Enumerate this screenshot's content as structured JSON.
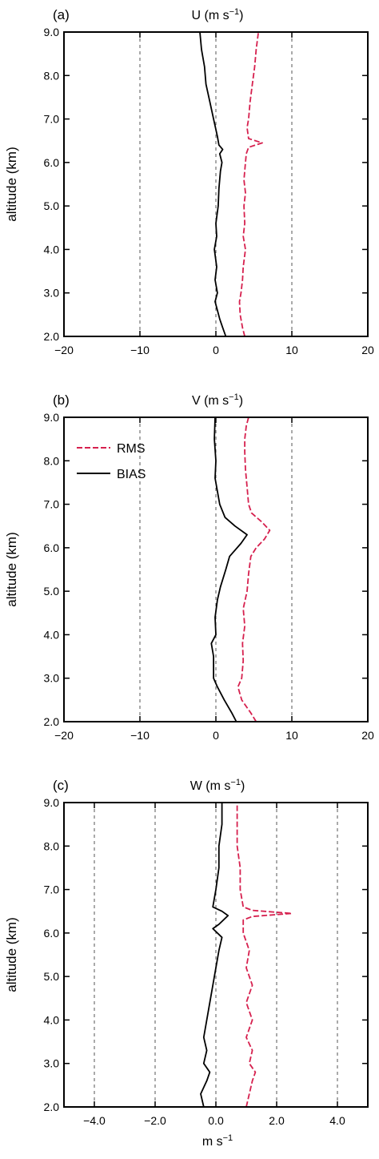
{
  "chart_data": [
    {
      "type": "line",
      "panel_label": "(a)",
      "title": "U (m s",
      "title_sup": "−1",
      "title_close": ")",
      "ylabel": "altitude (km)",
      "xlabel": "",
      "xlabel_sup": "",
      "xlim": [
        -20,
        20
      ],
      "ylim": [
        2.0,
        9.0
      ],
      "x_ticks": [
        -20,
        -10,
        0,
        10,
        20
      ],
      "x_tick_labels": [
        "−20",
        "−10",
        "0",
        "10",
        "20"
      ],
      "y_ticks": [
        2.0,
        3.0,
        4.0,
        5.0,
        6.0,
        7.0,
        8.0,
        9.0
      ],
      "y_tick_labels": [
        "2.0",
        "3.0",
        "4.0",
        "5.0",
        "6.0",
        "7.0",
        "8.0",
        "9.0"
      ],
      "grid_x": [
        -10,
        0,
        10
      ],
      "legend": null,
      "series": [
        {
          "name": "RMS",
          "color": "#d6204e",
          "dash": true,
          "points": [
            [
              3.8,
              2.0
            ],
            [
              3.5,
              2.2
            ],
            [
              3.2,
              2.5
            ],
            [
              3.1,
              2.8
            ],
            [
              3.3,
              3.0
            ],
            [
              3.5,
              3.3
            ],
            [
              3.6,
              3.6
            ],
            [
              3.9,
              4.0
            ],
            [
              3.6,
              4.3
            ],
            [
              3.8,
              4.6
            ],
            [
              3.7,
              5.0
            ],
            [
              3.9,
              5.3
            ],
            [
              3.7,
              5.6
            ],
            [
              3.9,
              6.0
            ],
            [
              4.0,
              6.2
            ],
            [
              4.3,
              6.35
            ],
            [
              6.1,
              6.45
            ],
            [
              4.3,
              6.55
            ],
            [
              4.1,
              6.8
            ],
            [
              4.3,
              7.0
            ],
            [
              4.5,
              7.4
            ],
            [
              4.8,
              7.8
            ],
            [
              5.1,
              8.2
            ],
            [
              5.3,
              8.6
            ],
            [
              5.6,
              9.0
            ]
          ]
        },
        {
          "name": "BIAS",
          "color": "#000000",
          "dash": false,
          "points": [
            [
              1.3,
              2.0
            ],
            [
              0.9,
              2.2
            ],
            [
              0.5,
              2.4
            ],
            [
              0.2,
              2.6
            ],
            [
              -0.1,
              2.8
            ],
            [
              0.2,
              3.0
            ],
            [
              -0.1,
              3.3
            ],
            [
              0.1,
              3.6
            ],
            [
              -0.2,
              4.0
            ],
            [
              0.1,
              4.3
            ],
            [
              0.0,
              4.6
            ],
            [
              0.3,
              5.0
            ],
            [
              0.4,
              5.4
            ],
            [
              0.6,
              5.8
            ],
            [
              0.8,
              6.0
            ],
            [
              0.5,
              6.2
            ],
            [
              0.9,
              6.3
            ],
            [
              0.4,
              6.4
            ],
            [
              0.2,
              6.6
            ],
            [
              -0.3,
              7.0
            ],
            [
              -0.8,
              7.4
            ],
            [
              -1.3,
              7.8
            ],
            [
              -1.5,
              8.2
            ],
            [
              -1.9,
              8.6
            ],
            [
              -2.1,
              9.0
            ]
          ]
        }
      ]
    },
    {
      "type": "line",
      "panel_label": "(b)",
      "title": "V (m s",
      "title_sup": "−1",
      "title_close": ")",
      "ylabel": "altitude (km)",
      "xlabel": "",
      "xlabel_sup": "",
      "xlim": [
        -20,
        20
      ],
      "ylim": [
        2.0,
        9.0
      ],
      "x_ticks": [
        -20,
        -10,
        0,
        10,
        20
      ],
      "x_tick_labels": [
        "−20",
        "−10",
        "0",
        "10",
        "20"
      ],
      "y_ticks": [
        2.0,
        3.0,
        4.0,
        5.0,
        6.0,
        7.0,
        8.0,
        9.0
      ],
      "y_tick_labels": [
        "2.0",
        "3.0",
        "4.0",
        "5.0",
        "6.0",
        "7.0",
        "8.0",
        "9.0"
      ],
      "grid_x": [
        -10,
        0,
        10
      ],
      "legend": {
        "placement": "top-left",
        "entries": [
          "RMS",
          "BIAS"
        ]
      },
      "series": [
        {
          "name": "RMS",
          "color": "#d6204e",
          "dash": true,
          "points": [
            [
              5.3,
              2.0
            ],
            [
              4.6,
              2.2
            ],
            [
              3.4,
              2.5
            ],
            [
              2.9,
              2.8
            ],
            [
              3.4,
              3.0
            ],
            [
              3.6,
              3.4
            ],
            [
              3.5,
              3.8
            ],
            [
              3.8,
              4.2
            ],
            [
              3.6,
              4.6
            ],
            [
              4.1,
              5.0
            ],
            [
              4.3,
              5.4
            ],
            [
              4.6,
              5.8
            ],
            [
              5.3,
              6.0
            ],
            [
              6.4,
              6.2
            ],
            [
              7.1,
              6.4
            ],
            [
              6.0,
              6.6
            ],
            [
              4.7,
              6.8
            ],
            [
              4.3,
              7.0
            ],
            [
              4.1,
              7.4
            ],
            [
              3.9,
              7.8
            ],
            [
              3.8,
              8.2
            ],
            [
              3.8,
              8.5
            ],
            [
              4.0,
              8.8
            ],
            [
              4.3,
              9.0
            ]
          ]
        },
        {
          "name": "BIAS",
          "color": "#000000",
          "dash": false,
          "points": [
            [
              2.7,
              2.0
            ],
            [
              2.1,
              2.2
            ],
            [
              1.1,
              2.5
            ],
            [
              0.2,
              2.8
            ],
            [
              -0.3,
              3.0
            ],
            [
              -0.3,
              3.5
            ],
            [
              -0.6,
              3.8
            ],
            [
              0.0,
              4.0
            ],
            [
              -0.1,
              4.4
            ],
            [
              0.2,
              4.8
            ],
            [
              0.6,
              5.1
            ],
            [
              1.3,
              5.5
            ],
            [
              1.8,
              5.8
            ],
            [
              3.3,
              6.1
            ],
            [
              4.1,
              6.3
            ],
            [
              2.5,
              6.5
            ],
            [
              1.2,
              6.7
            ],
            [
              0.5,
              7.0
            ],
            [
              0.2,
              7.3
            ],
            [
              -0.1,
              7.6
            ],
            [
              0.0,
              8.0
            ],
            [
              -0.2,
              8.5
            ],
            [
              -0.1,
              9.0
            ]
          ]
        }
      ]
    },
    {
      "type": "line",
      "panel_label": "(c)",
      "title": "W (m s",
      "title_sup": "−1",
      "title_close": ")",
      "ylabel": "altitude (km)",
      "xlabel": "m s",
      "xlabel_sup": "−1",
      "xlim": [
        -5,
        5
      ],
      "ylim": [
        2.0,
        9.0
      ],
      "x_ticks": [
        -4,
        -2,
        0,
        2,
        4
      ],
      "x_tick_labels": [
        "−4.0",
        "−2.0",
        "0.0",
        "2.0",
        "4.0"
      ],
      "y_ticks": [
        2.0,
        3.0,
        4.0,
        5.0,
        6.0,
        7.0,
        8.0,
        9.0
      ],
      "y_tick_labels": [
        "2.0",
        "3.0",
        "4.0",
        "5.0",
        "6.0",
        "7.0",
        "8.0",
        "9.0"
      ],
      "grid_x": [
        -4,
        -2,
        0,
        2,
        4
      ],
      "legend": null,
      "series": [
        {
          "name": "RMS",
          "color": "#d6204e",
          "dash": true,
          "points": [
            [
              1.0,
              2.0
            ],
            [
              1.1,
              2.3
            ],
            [
              1.2,
              2.6
            ],
            [
              1.3,
              2.8
            ],
            [
              1.1,
              3.0
            ],
            [
              1.2,
              3.3
            ],
            [
              1.0,
              3.6
            ],
            [
              1.2,
              4.0
            ],
            [
              1.0,
              4.4
            ],
            [
              1.2,
              4.8
            ],
            [
              1.0,
              5.2
            ],
            [
              1.1,
              5.6
            ],
            [
              0.9,
              6.0
            ],
            [
              0.9,
              6.3
            ],
            [
              1.2,
              6.38
            ],
            [
              2.5,
              6.45
            ],
            [
              1.2,
              6.52
            ],
            [
              0.9,
              6.6
            ],
            [
              0.8,
              7.0
            ],
            [
              0.8,
              7.5
            ],
            [
              0.7,
              8.0
            ],
            [
              0.7,
              8.5
            ],
            [
              0.7,
              9.0
            ]
          ]
        },
        {
          "name": "BIAS",
          "color": "#000000",
          "dash": false,
          "points": [
            [
              -0.4,
              2.0
            ],
            [
              -0.5,
              2.3
            ],
            [
              -0.3,
              2.6
            ],
            [
              -0.2,
              2.8
            ],
            [
              -0.4,
              3.0
            ],
            [
              -0.3,
              3.3
            ],
            [
              -0.4,
              3.6
            ],
            [
              -0.3,
              4.0
            ],
            [
              -0.2,
              4.4
            ],
            [
              -0.1,
              4.8
            ],
            [
              0.0,
              5.2
            ],
            [
              0.1,
              5.6
            ],
            [
              0.2,
              5.9
            ],
            [
              -0.1,
              6.1
            ],
            [
              0.1,
              6.2
            ],
            [
              0.4,
              6.4
            ],
            [
              0.2,
              6.5
            ],
            [
              -0.1,
              6.6
            ],
            [
              0.0,
              7.0
            ],
            [
              0.1,
              7.5
            ],
            [
              0.1,
              8.0
            ],
            [
              0.2,
              8.5
            ],
            [
              0.2,
              9.0
            ]
          ]
        }
      ]
    }
  ]
}
